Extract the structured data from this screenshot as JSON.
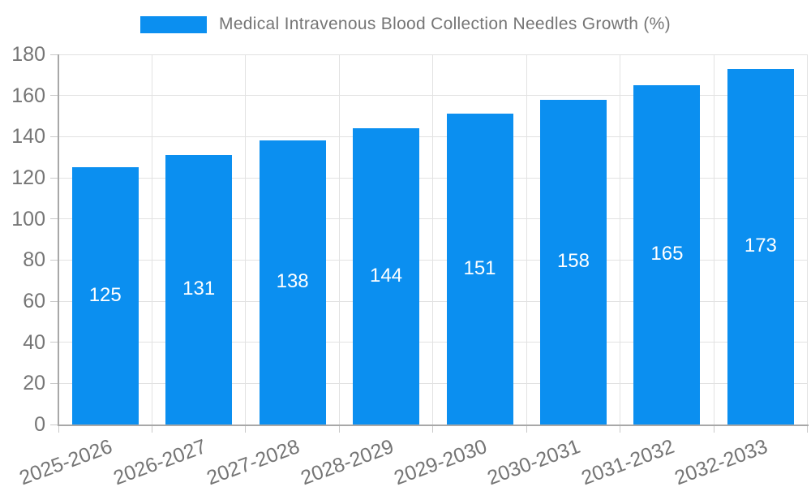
{
  "chart_data": {
    "type": "bar",
    "title": "Medical Intravenous Blood Collection Needles Growth (%)",
    "categories": [
      "2025-2026",
      "2026-2027",
      "2027-2028",
      "2028-2029",
      "2029-2030",
      "2030-2031",
      "2031-2032",
      "2032-2033"
    ],
    "values": [
      125,
      131,
      138,
      144,
      151,
      158,
      165,
      173
    ],
    "xlabel": "",
    "ylabel": "",
    "ylim": [
      0,
      180
    ],
    "yticks": [
      0,
      20,
      40,
      60,
      80,
      100,
      120,
      140,
      160,
      180
    ],
    "grid": true,
    "legend_position": "top-center",
    "bar_color": "#0b8ff0",
    "value_label_color": "#ffffff",
    "axis_text_color": "#757575",
    "grid_color": "#e2e2e2",
    "axis_line_color": "#a8a8a8"
  }
}
